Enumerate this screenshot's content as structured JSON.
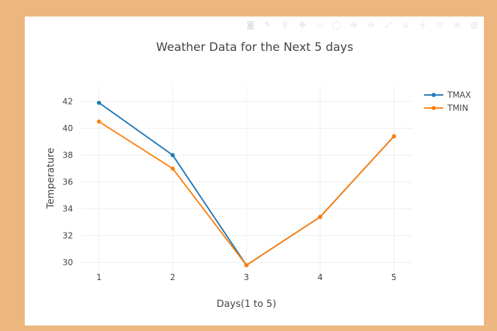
{
  "modebar": {
    "icons": [
      "camera-icon",
      "pencil-icon",
      "zoom-icon",
      "pan-icon",
      "box-select-icon",
      "lasso-icon",
      "zoom-in-icon",
      "zoom-out-icon",
      "autoscale-icon",
      "reset-axes-icon",
      "spike-lines-icon",
      "hover-closest-icon",
      "hover-compare-icon",
      "plotly-logo-icon"
    ],
    "glyphs": [
      "◙",
      "✎",
      "⚲",
      "✥",
      "▭",
      "◯",
      "⊕",
      "⊖",
      "⤢",
      "⌂",
      "┼",
      "⊙",
      "≡",
      "▥"
    ]
  },
  "chart_data": {
    "type": "line",
    "title": "Weather Data for the Next 5 days",
    "xlabel": "Days(1 to 5)",
    "ylabel": "Temperature",
    "x": [
      1,
      2,
      3,
      4,
      5
    ],
    "x_ticks": [
      "1",
      "2",
      "3",
      "4",
      "5"
    ],
    "xlim": [
      0.75,
      5.25
    ],
    "y_ticks": [
      "30",
      "32",
      "34",
      "36",
      "38",
      "40",
      "42"
    ],
    "ylim": [
      28.9,
      43.2
    ],
    "grid": true,
    "legend_position": "top-right",
    "series": [
      {
        "name": "TMAX",
        "color": "#1f77b4",
        "values": [
          41.9,
          38.0,
          29.8,
          33.4,
          39.4
        ]
      },
      {
        "name": "TMIN",
        "color": "#ff7f0e",
        "values": [
          40.5,
          37.0,
          29.8,
          33.4,
          39.4
        ]
      }
    ]
  }
}
